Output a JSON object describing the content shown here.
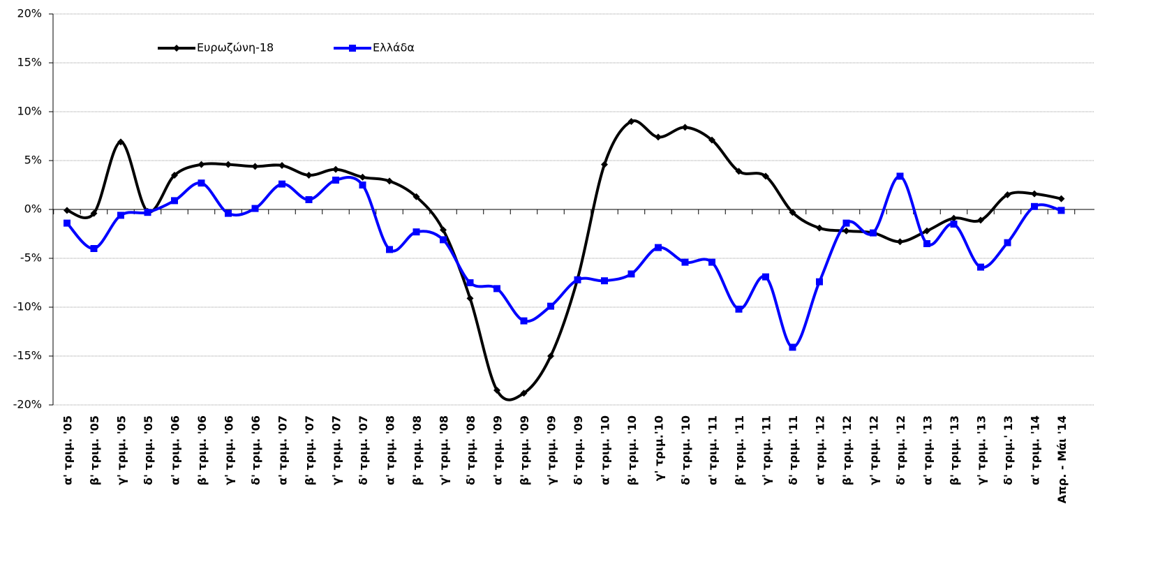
{
  "chart_data": {
    "type": "line",
    "categories": [
      "α' τριμ. '05",
      "β' τριμ. '05",
      "γ' τριμ. '05",
      "δ' τριμ. '05",
      "α' τριμ. '06",
      "β' τριμ. '06",
      "γ' τριμ. '06",
      "δ' τριμ. '06",
      "α' τριμ. '07",
      "β' τριμ. '07",
      "γ' τριμ. '07",
      "δ' τριμ. '07",
      "α' τριμ. '08",
      "β' τριμ. '08",
      "γ' τριμ. '08",
      "δ' τριμ. '08",
      "α' τριμ. '09",
      "β' τριμ. '09",
      "γ' τριμ. '09",
      "δ' τριμ. '09",
      "α' τριμ. '10",
      "β' τριμ. '10",
      "γ' τριμ.'10",
      "δ' τριμ. '10",
      "α' τριμ. '11",
      "β' τριμ. '11",
      "γ' τριμ. '11",
      "δ' τριμ. '11",
      "α' τριμ. '12",
      "β' τριμ. '12",
      "γ' τριμ. '12",
      "δ' τριμ. '12",
      "α' τριμ. '13",
      "β' τριμ. '13",
      "γ' τριμ. '13",
      "δ' τριμ.' 13",
      "α' τριμ. '14",
      "Απρ. - Μάι '14"
    ],
    "series": [
      {
        "name": "Ευρωζώνη-18",
        "color": "#000000",
        "marker": "diamond",
        "values": [
          -0.1,
          -0.4,
          6.9,
          -0.2,
          3.5,
          4.6,
          4.6,
          4.4,
          4.5,
          3.5,
          4.1,
          3.3,
          2.9,
          1.3,
          -2.1,
          -9.1,
          -18.5,
          -18.8,
          -15.0,
          -7.1,
          4.6,
          9.0,
          7.4,
          8.4,
          7.1,
          3.9,
          3.4,
          -0.3,
          -1.9,
          -2.2,
          -2.4,
          -3.3,
          -2.2,
          -0.9,
          -1.1,
          1.5,
          1.6,
          1.1
        ]
      },
      {
        "name": "Ελλάδα",
        "color": "#0000ff",
        "marker": "square",
        "values": [
          -1.4,
          -4.0,
          -0.6,
          -0.3,
          0.9,
          2.7,
          -0.4,
          0.1,
          2.6,
          1.0,
          3.0,
          2.5,
          -4.1,
          -2.3,
          -3.1,
          -7.5,
          -8.1,
          -11.4,
          -9.9,
          -7.2,
          -7.3,
          -6.6,
          -3.9,
          -5.4,
          -5.4,
          -10.2,
          -6.9,
          -14.1,
          -7.4,
          -1.4,
          -2.4,
          3.4,
          -3.5,
          -1.5,
          -5.9,
          -3.4,
          0.3,
          -0.1
        ]
      }
    ],
    "ylim": [
      -20,
      20
    ],
    "yticks": [
      {
        "value": -20,
        "label": "-20%"
      },
      {
        "value": -15,
        "label": "-15%"
      },
      {
        "value": -10,
        "label": "-10%"
      },
      {
        "value": -5,
        "label": "-5%"
      },
      {
        "value": 0,
        "label": "0%"
      },
      {
        "value": 5,
        "label": "5%"
      },
      {
        "value": 10,
        "label": "10%"
      },
      {
        "value": 15,
        "label": "15%"
      },
      {
        "value": 20,
        "label": "20%"
      }
    ],
    "grid": true,
    "smooth": true,
    "legend": "top-left"
  }
}
